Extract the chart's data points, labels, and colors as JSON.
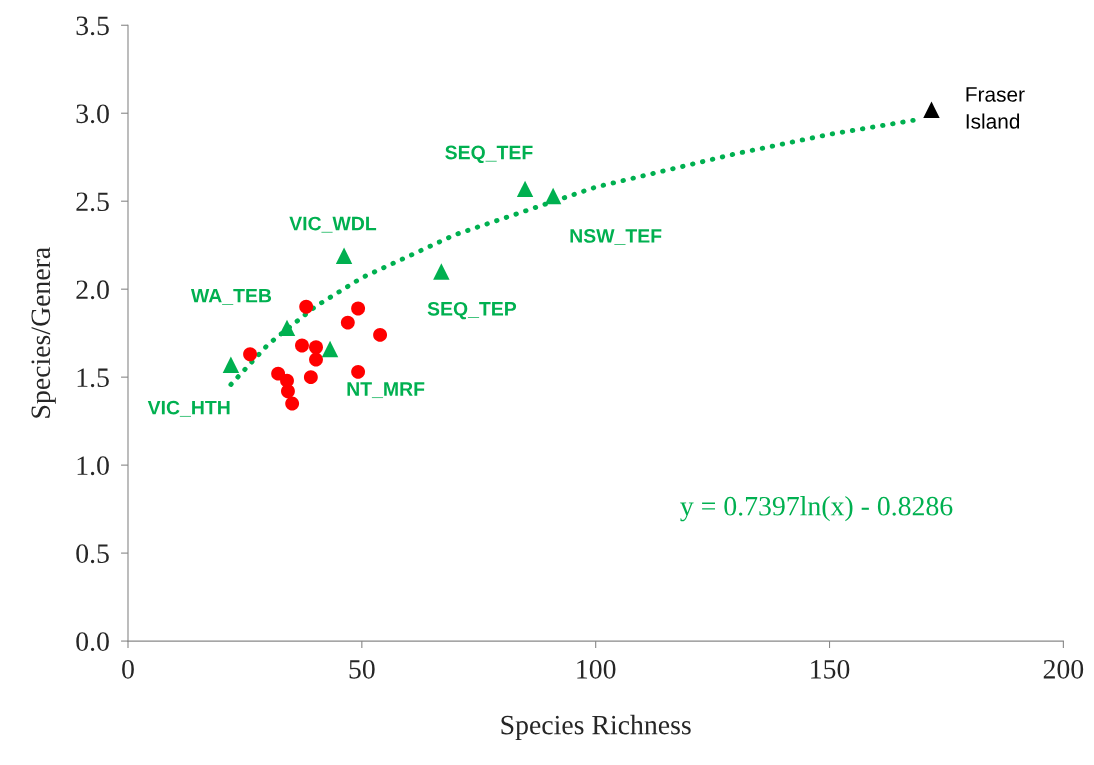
{
  "chart_data": {
    "type": "scatter",
    "xlabel": "Species Richness",
    "ylabel": "Species/Genera",
    "xlim": [
      0,
      200
    ],
    "xticks": [
      0,
      50,
      100,
      150,
      200
    ],
    "ylim": [
      0,
      3.5
    ],
    "yticks": [
      {
        "value": 0,
        "label": "0.0"
      },
      {
        "value": 0.5,
        "label": "0.5"
      },
      {
        "value": 1,
        "label": "1.0"
      },
      {
        "value": 1.5,
        "label": "1.5"
      },
      {
        "value": 2,
        "label": "2.0"
      },
      {
        "value": 2.5,
        "label": "2.5"
      },
      {
        "value": 3,
        "label": "3.0"
      },
      {
        "value": 3.5,
        "label": "3.5"
      }
    ],
    "grid": false,
    "legend": false,
    "series": [
      {
        "marker": "circle",
        "color": "#ff0000",
        "x": [
          38.1,
          49.2,
          47.0,
          53.9,
          37.2,
          40.2,
          40.2,
          26.1,
          32.1,
          34.0,
          34.2,
          39.1,
          49.2,
          35.1
        ],
        "values": [
          1.9,
          1.89,
          1.81,
          1.74,
          1.68,
          1.67,
          1.6,
          1.63,
          1.52,
          1.48,
          1.42,
          1.5,
          1.53,
          1.35
        ]
      },
      {
        "marker": "triangle",
        "color": "#00b050",
        "x": [
          22.0,
          34.0,
          43.2,
          46.2,
          67.0,
          84.9,
          90.9
        ],
        "values": [
          1.57,
          1.78,
          1.66,
          2.19,
          2.1,
          2.57,
          2.53
        ]
      },
      {
        "marker": "triangle",
        "color": "#000000",
        "x": [
          171.8
        ],
        "values": [
          3.02
        ]
      },
      {
        "type": "line",
        "line_style": "dotted",
        "color": "#00b050",
        "x": [
          22,
          30,
          40,
          50,
          70,
          100,
          130,
          150,
          168
        ],
        "values": [
          1.458,
          1.687,
          1.9,
          2.065,
          2.31,
          2.58,
          2.77,
          2.88,
          2.96
        ]
      }
    ],
    "annotations": [
      {
        "text": "VIC_HTH",
        "x": 22.0,
        "y": 1.57
      },
      {
        "text": "WA_TEB",
        "x": 34.0,
        "y": 1.78
      },
      {
        "text": "NT_MRF",
        "x": 43.2,
        "y": 1.66
      },
      {
        "text": "VIC_WDL",
        "x": 46.2,
        "y": 2.19
      },
      {
        "text": "SEQ_TEP",
        "x": 67.0,
        "y": 2.1
      },
      {
        "text": "SEQ_TEF",
        "x": 84.9,
        "y": 2.57
      },
      {
        "text": "NSW_TEF",
        "x": 90.9,
        "y": 2.53
      },
      {
        "text": "Fraser\nIsland",
        "x": 171.8,
        "y": 3.02
      },
      "y = 0.7397ln(x) - 0.8286"
    ]
  }
}
